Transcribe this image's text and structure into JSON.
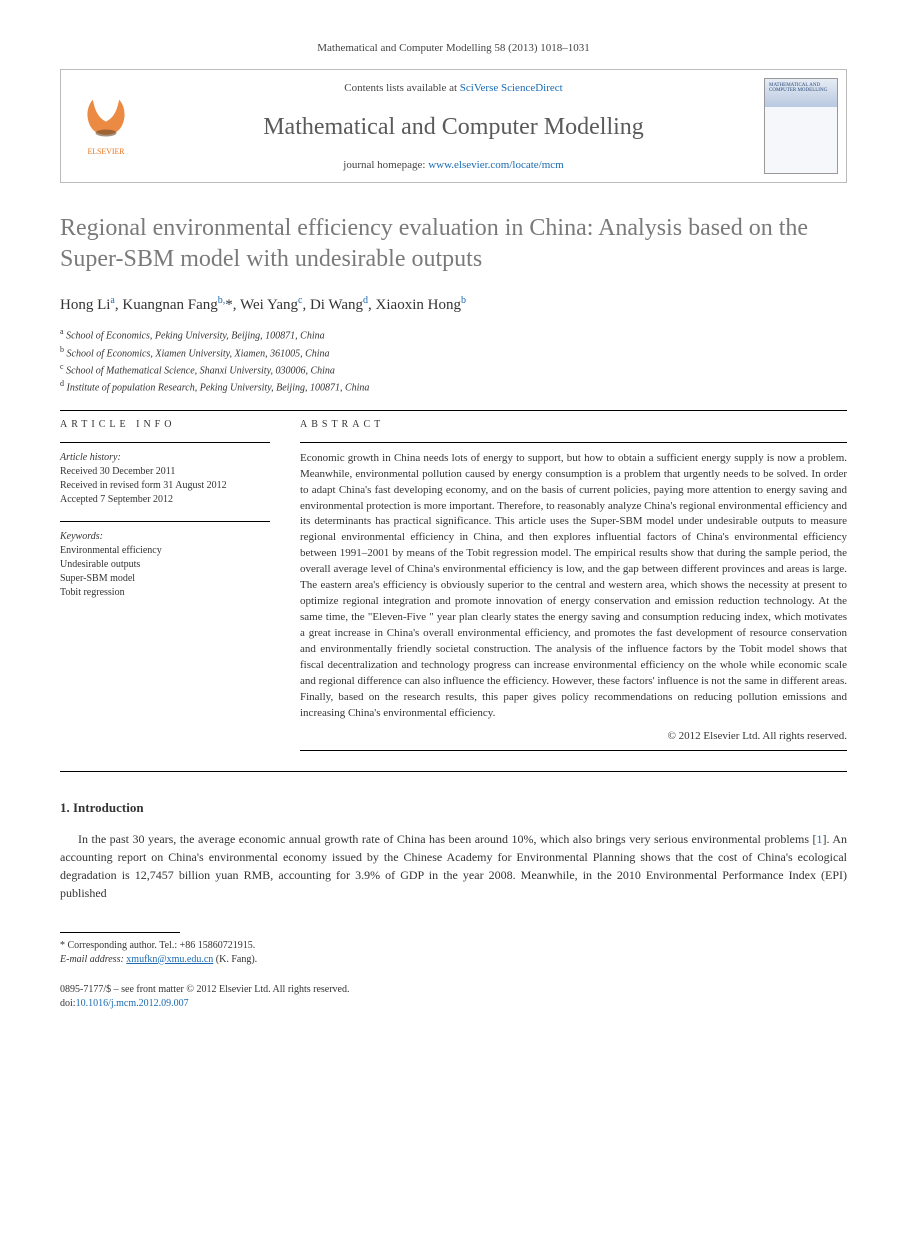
{
  "header": {
    "citation": "Mathematical and Computer Modelling 58 (2013) 1018–1031",
    "contents_prefix": "Contents lists available at ",
    "contents_link": "SciVerse ScienceDirect",
    "journal_name": "Mathematical and Computer Modelling",
    "homepage_prefix": "journal homepage: ",
    "homepage_url": "www.elsevier.com/locate/mcm",
    "cover_text": "MATHEMATICAL AND COMPUTER MODELLING"
  },
  "title": "Regional environmental efficiency evaluation in China: Analysis based on the Super-SBM model with undesirable outputs",
  "authors_html": "Hong Li<sup>a</sup>, Kuangnan Fang<sup>b,</sup>*, Wei Yang<sup>c</sup>, Di Wang<sup>d</sup>, Xiaoxin Hong<sup>b</sup>",
  "affiliations": [
    "a School of Economics, Peking University, Beijing, 100871, China",
    "b School of Economics, Xiamen University, Xiamen, 361005, China",
    "c School of Mathematical Science, Shanxi University, 030006, China",
    "d Institute of population Research, Peking University, Beijing, 100871, China"
  ],
  "article_info": {
    "heading": "ARTICLE INFO",
    "history_label": "Article history:",
    "history": [
      "Received 30 December 2011",
      "Received in revised form 31 August 2012",
      "Accepted 7 September 2012"
    ],
    "keywords_label": "Keywords:",
    "keywords": [
      "Environmental efficiency",
      "Undesirable outputs",
      "Super-SBM model",
      "Tobit regression"
    ]
  },
  "abstract": {
    "heading": "ABSTRACT",
    "text": "Economic growth in China needs lots of energy to support, but how to obtain a sufficient energy supply is now a problem. Meanwhile, environmental pollution caused by energy consumption is a problem that urgently needs to be solved. In order to adapt China's fast developing economy, and on the basis of current policies, paying more attention to energy saving and environmental protection is more important. Therefore, to reasonably analyze China's regional environmental efficiency and its determinants has practical significance. This article uses the Super-SBM model under undesirable outputs to measure regional environmental efficiency in China, and then explores influential factors of China's environmental efficiency between 1991–2001 by means of the Tobit regression model. The empirical results show that during the sample period, the overall average level of China's environmental efficiency is low, and the gap between different provinces and areas is large. The eastern area's efficiency is obviously superior to the central and western area, which shows the necessity at present to optimize regional integration and promote innovation of energy conservation and emission reduction technology. At the same time, the \"Eleven-Five \" year plan clearly states the energy saving and consumption reducing index, which motivates a great increase in China's overall environmental efficiency, and promotes the fast development of resource conservation and environmentally friendly societal construction. The analysis of the influence factors by the Tobit model shows that fiscal decentralization and technology progress can increase environmental efficiency on the whole while economic scale and regional difference can also influence the efficiency. However, these factors' influence is not the same in different areas. Finally, based on the research results, this paper gives policy recommendations on reducing pollution emissions and increasing China's environmental efficiency.",
    "copyright": "© 2012 Elsevier Ltd. All rights reserved."
  },
  "section1": {
    "heading": "1. Introduction",
    "para1": "In the past 30 years, the average economic annual growth rate of China has been around 10%, which also brings very serious environmental problems [1]. An accounting report on China's environmental economy issued by the Chinese Academy for Environmental Planning shows that the cost of China's ecological degradation is 12,7457 billion yuan RMB, accounting for 3.9% of GDP in the year 2008. Meanwhile, in the 2010 Environmental Performance Index (EPI) published"
  },
  "footer": {
    "corresp_label": "* Corresponding author. Tel.: +86 15860721915.",
    "email_label": "E-mail address: ",
    "email": "xmufkn@xmu.edu.cn",
    "email_suffix": " (K. Fang).",
    "issn_line": "0895-7177/$ – see front matter © 2012 Elsevier Ltd. All rights reserved.",
    "doi_label": "doi:",
    "doi": "10.1016/j.mcm.2012.09.007"
  },
  "colors": {
    "link": "#1a6bb3",
    "title_gray": "#7a7a7a",
    "journal_gray": "#5a5a5a",
    "border": "#bbbbbb",
    "text": "#333333"
  }
}
